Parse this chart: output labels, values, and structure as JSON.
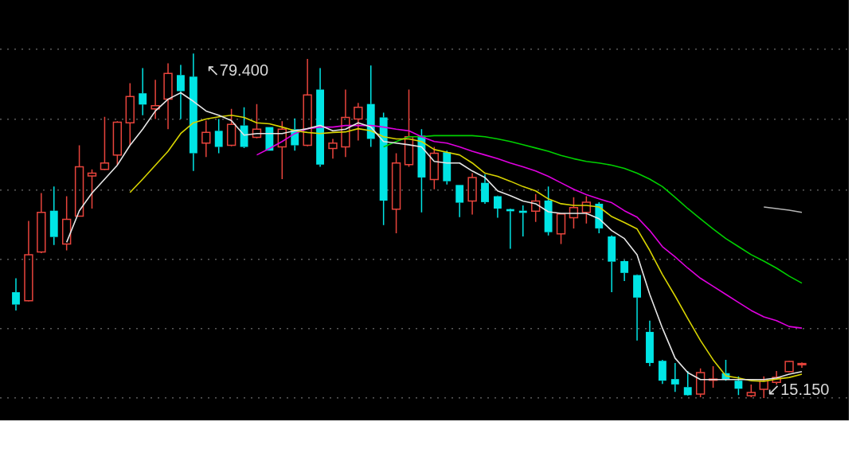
{
  "chart_data": {
    "type": "candlestick",
    "categories": [
      null,
      null,
      null,
      null,
      null,
      null,
      null,
      null,
      null,
      null,
      null,
      null,
      null,
      null,
      null,
      null,
      null,
      null,
      null,
      null,
      null,
      null,
      null,
      null,
      null,
      null,
      null,
      null,
      null,
      null,
      null,
      null,
      null,
      null,
      null,
      null,
      null,
      null,
      null,
      null,
      null,
      null,
      null,
      null,
      null,
      null,
      null,
      null,
      null,
      null,
      null,
      null,
      null,
      null,
      null,
      null,
      null,
      null,
      null,
      null,
      null,
      null,
      null
    ],
    "ohlc": [
      [
        34.9,
        37.5,
        31.5,
        32.6
      ],
      [
        33.3,
        48.2,
        33.2,
        41.9
      ],
      [
        42.4,
        53.4,
        42.2,
        49.8
      ],
      [
        50.1,
        54.6,
        43.7,
        45.2
      ],
      [
        43.9,
        52.8,
        42.7,
        48.5
      ],
      [
        49.1,
        62.3,
        49.0,
        58.3
      ],
      [
        56.6,
        57.8,
        50.5,
        57.1
      ],
      [
        57.8,
        67.6,
        57.7,
        59.0
      ],
      [
        60.5,
        66.8,
        58.6,
        66.6
      ],
      [
        66.5,
        73.9,
        62.3,
        71.4
      ],
      [
        72.0,
        76.7,
        67.9,
        69.9
      ],
      [
        69.1,
        74.5,
        67.2,
        69.7
      ],
      [
        70.9,
        77.6,
        65.3,
        75.7
      ],
      [
        75.4,
        77.3,
        67.2,
        72.4
      ],
      [
        75.1,
        79.4,
        57.5,
        60.8
      ],
      [
        62.7,
        66.9,
        60.1,
        64.7
      ],
      [
        65.0,
        67.2,
        60.8,
        62.0
      ],
      [
        62.3,
        69.1,
        62.1,
        66.2
      ],
      [
        66.0,
        69.4,
        61.8,
        62.0
      ],
      [
        63.8,
        70.0,
        63.6,
        65.3
      ],
      [
        65.7,
        65.7,
        61.3,
        61.3
      ],
      [
        62.0,
        66.8,
        56.0,
        65.3
      ],
      [
        65.3,
        67.3,
        61.3,
        62.3
      ],
      [
        62.3,
        78.4,
        62.1,
        71.7
      ],
      [
        72.7,
        76.7,
        58.3,
        58.7
      ],
      [
        61.7,
        63.5,
        59.8,
        62.7
      ],
      [
        62.0,
        72.7,
        60.1,
        67.5
      ],
      [
        67.2,
        70.2,
        63.2,
        69.4
      ],
      [
        70.0,
        77.2,
        62.0,
        63.5
      ],
      [
        67.5,
        68.4,
        47.4,
        52.0
      ],
      [
        50.4,
        60.8,
        45.9,
        59.0
      ],
      [
        58.7,
        72.7,
        58.3,
        63.9
      ],
      [
        64.1,
        65.3,
        49.8,
        56.3
      ],
      [
        55.9,
        62.0,
        54.1,
        60.8
      ],
      [
        61.0,
        61.3,
        55.0,
        55.6
      ],
      [
        54.9,
        54.9,
        48.9,
        51.6
      ],
      [
        51.9,
        57.1,
        49.4,
        56.3
      ],
      [
        55.3,
        56.9,
        51.4,
        51.7
      ],
      [
        52.8,
        52.9,
        48.8,
        50.5
      ],
      [
        50.4,
        50.5,
        43.0,
        50.0
      ],
      [
        50.1,
        51.1,
        45.3,
        49.7
      ],
      [
        50.0,
        53.2,
        48.0,
        51.9
      ],
      [
        52.0,
        54.6,
        45.5,
        46.1
      ],
      [
        45.8,
        49.6,
        43.9,
        49.5
      ],
      [
        48.8,
        52.6,
        46.8,
        50.7
      ],
      [
        49.8,
        52.8,
        47.7,
        51.7
      ],
      [
        51.4,
        51.7,
        45.9,
        46.8
      ],
      [
        45.3,
        45.5,
        34.9,
        40.6
      ],
      [
        40.7,
        40.9,
        37.0,
        38.5
      ],
      [
        38.1,
        38.2,
        25.9,
        33.9
      ],
      [
        27.5,
        29.6,
        21.1,
        21.7
      ],
      [
        22.1,
        22.3,
        17.8,
        18.4
      ],
      [
        18.7,
        21.7,
        16.3,
        17.7
      ],
      [
        17.2,
        20.2,
        15.6,
        15.7
      ],
      [
        15.9,
        20.7,
        15.3,
        19.9
      ],
      [
        18.6,
        21.1,
        17.1,
        18.7
      ],
      [
        19.8,
        22.3,
        18.4,
        18.6
      ],
      [
        18.4,
        19.2,
        15.7,
        16.9
      ],
      [
        15.6,
        17.7,
        15.3,
        16.2
      ],
      [
        16.8,
        19.2,
        15.15,
        18.4
      ],
      [
        18.1,
        20.2,
        17.7,
        19.0
      ],
      [
        20.1,
        22.1,
        20.0,
        22.0
      ],
      [
        21.4,
        21.8,
        20.8,
        21.6
      ]
    ],
    "colors": [
      "#00e5e5",
      "#e8443c",
      "#e8443c",
      "#00e5e5",
      "#e8443c",
      "#e8443c",
      "#e8443c",
      "#e8443c",
      "#e8443c",
      "#e8443c",
      "#00e5e5",
      "#e8443c",
      "#e8443c",
      "#00e5e5",
      "#00e5e5",
      "#e8443c",
      "#00e5e5",
      "#e8443c",
      "#00e5e5",
      "#e8443c",
      "#00e5e5",
      "#e8443c",
      "#00e5e5",
      "#e8443c",
      "#00e5e5",
      "#e8443c",
      "#e8443c",
      "#e8443c",
      "#00e5e5",
      "#00e5e5",
      "#e8443c",
      "#e8443c",
      "#00e5e5",
      "#e8443c",
      "#00e5e5",
      "#00e5e5",
      "#e8443c",
      "#00e5e5",
      "#00e5e5",
      "#00e5e5",
      "#00e5e5",
      "#e8443c",
      "#00e5e5",
      "#e8443c",
      "#e8443c",
      "#e8443c",
      "#00e5e5",
      "#00e5e5",
      "#00e5e5",
      "#00e5e5",
      "#00e5e5",
      "#00e5e5",
      "#00e5e5",
      "#00e5e5",
      "#e8443c",
      "#e8443c",
      "#00e5e5",
      "#00e5e5",
      "#e8443c",
      "#e8443c",
      "#e8443c",
      "#e8443c",
      "#e8443c"
    ],
    "series": [
      {
        "type": "line",
        "color": "#e6e6e6",
        "values": [
          null,
          null,
          null,
          null,
          44.2,
          50.1,
          53.4,
          56.0,
          58.6,
          62.3,
          65.3,
          68.7,
          70.9,
          72.1,
          70.5,
          68.7,
          67.9,
          66.9,
          64.2,
          64.5,
          64.5,
          64.5,
          65.0,
          65.4,
          66.0,
          65.0,
          65.3,
          66.5,
          65.7,
          63.0,
          62.7,
          62.4,
          62.0,
          59.3,
          59.0,
          59.0,
          57.5,
          56.3,
          53.8,
          52.9,
          51.9,
          51.4,
          49.9,
          49.6,
          49.6,
          49.6,
          48.6,
          46.4,
          44.9,
          41.9,
          34.5,
          28.2,
          22.6,
          19.9,
          18.6,
          18.6,
          18.6,
          18.6,
          18.6,
          18.6,
          18.9,
          19.6,
          20.1
        ]
      },
      {
        "type": "line",
        "color": "#d8d400",
        "values": [
          null,
          null,
          null,
          null,
          null,
          null,
          null,
          null,
          null,
          53.5,
          56.0,
          58.6,
          61.2,
          64.5,
          66.5,
          67.2,
          67.6,
          67.9,
          67.5,
          66.5,
          66.3,
          65.7,
          65.0,
          64.7,
          64.5,
          64.7,
          64.8,
          65.4,
          65.0,
          63.9,
          63.5,
          63.5,
          63.0,
          61.5,
          61.0,
          60.5,
          59.0,
          57.1,
          56.5,
          55.6,
          54.6,
          53.8,
          52.3,
          51.4,
          51.1,
          51.1,
          50.8,
          49.0,
          47.9,
          46.7,
          42.7,
          38.2,
          34.2,
          30.0,
          25.9,
          22.3,
          19.3,
          18.9,
          18.4,
          18.3,
          18.7,
          19.0,
          19.6
        ]
      },
      {
        "type": "line",
        "color": "#e000e0",
        "values": [
          null,
          null,
          null,
          null,
          null,
          null,
          null,
          null,
          null,
          null,
          null,
          null,
          null,
          null,
          null,
          null,
          null,
          null,
          null,
          60.5,
          61.7,
          63.0,
          64.5,
          65.4,
          65.7,
          65.7,
          66.0,
          66.0,
          66.0,
          65.7,
          65.3,
          65.0,
          63.9,
          63.0,
          62.7,
          62.0,
          61.2,
          60.5,
          59.8,
          59.0,
          58.3,
          57.5,
          56.5,
          55.3,
          54.1,
          53.1,
          52.3,
          51.6,
          50.1,
          48.9,
          46.4,
          43.4,
          41.5,
          39.4,
          37.5,
          36.0,
          34.5,
          33.0,
          31.5,
          30.3,
          29.6,
          28.5,
          28.2
        ]
      },
      {
        "type": "line",
        "color": "#00d000",
        "values": [
          null,
          null,
          null,
          null,
          null,
          null,
          null,
          null,
          null,
          null,
          null,
          null,
          null,
          null,
          null,
          null,
          null,
          null,
          null,
          null,
          null,
          null,
          null,
          null,
          null,
          null,
          null,
          null,
          null,
          62.0,
          63.0,
          63.9,
          63.9,
          64.1,
          64.1,
          64.1,
          64.1,
          63.9,
          63.5,
          63.0,
          62.4,
          61.8,
          61.2,
          60.4,
          59.8,
          59.3,
          59.0,
          58.6,
          58.0,
          57.1,
          56.0,
          54.6,
          52.6,
          50.5,
          48.6,
          46.7,
          44.9,
          43.4,
          41.9,
          40.7,
          39.4,
          37.9,
          36.6
        ]
      },
      {
        "type": "line",
        "color": "#b4b4b4",
        "values": [
          null,
          null,
          null,
          null,
          null,
          null,
          null,
          null,
          null,
          null,
          null,
          null,
          null,
          null,
          null,
          null,
          null,
          null,
          null,
          null,
          null,
          null,
          null,
          null,
          null,
          null,
          null,
          null,
          null,
          null,
          null,
          null,
          null,
          null,
          null,
          null,
          null,
          null,
          null,
          null,
          null,
          null,
          null,
          null,
          null,
          null,
          null,
          null,
          null,
          null,
          null,
          null,
          null,
          null,
          null,
          null,
          null,
          null,
          null,
          50.8,
          50.5,
          50.2,
          49.8
        ]
      }
    ],
    "ylim": [
      11.0,
      89.4
    ],
    "yticks": [
      {
        "value": 15.2,
        "label": null
      },
      {
        "value": 28.1,
        "label": null
      },
      {
        "value": 41.0,
        "label": null
      },
      {
        "value": 54.0,
        "label": null
      },
      {
        "value": 67.2,
        "label": null
      },
      {
        "value": 80.3,
        "label": null
      }
    ],
    "grid": "y",
    "legend": false,
    "tick_labels": false,
    "marker": "none",
    "line_style": "solid",
    "annotations": [
      "↖79.400",
      "↙15.150"
    ]
  }
}
